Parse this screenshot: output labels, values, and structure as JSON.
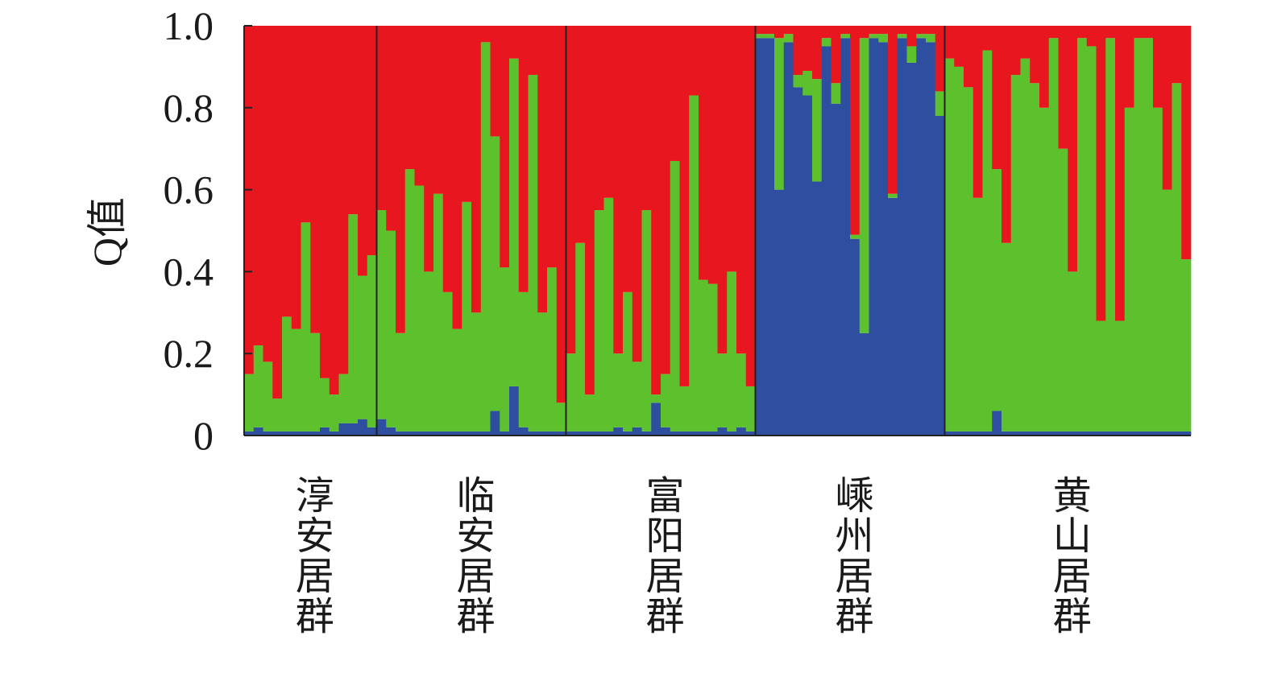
{
  "chart_data": {
    "type": "stacked-bar",
    "ylabel": "Q值",
    "ylim": [
      0,
      1
    ],
    "yticks": [
      0,
      0.2,
      0.4,
      0.6,
      0.8,
      {
        "value": 1,
        "label": "1.0"
      }
    ],
    "groups": [
      {
        "label": "淳安居群",
        "series": [
          {
            "color": "#2e4fa0",
            "values": [
              0.01,
              0.02,
              0.01,
              0.01,
              0.01,
              0.01,
              0.01,
              0.01,
              0.02,
              0.01,
              0.03,
              0.03,
              0.04,
              0.02
            ]
          },
          {
            "color": "#5cc12c",
            "values": [
              0.14,
              0.2,
              0.17,
              0.08,
              0.28,
              0.25,
              0.51,
              0.24,
              0.12,
              0.09,
              0.12,
              0.51,
              0.35,
              0.42
            ]
          },
          {
            "color": "#e8171f",
            "values": [
              0.85,
              0.78,
              0.82,
              0.91,
              0.71,
              0.74,
              0.48,
              0.75,
              0.86,
              0.9,
              0.85,
              0.46,
              0.61,
              0.56
            ]
          }
        ]
      },
      {
        "label": "临安居群",
        "series": [
          {
            "color": "#2e4fa0",
            "values": [
              0.04,
              0.02,
              0.01,
              0.01,
              0.01,
              0.01,
              0.01,
              0.01,
              0.01,
              0.01,
              0.01,
              0.01,
              0.06,
              0.01,
              0.12,
              0.02,
              0.01,
              0.01,
              0.01,
              0.01
            ]
          },
          {
            "color": "#5cc12c",
            "values": [
              0.51,
              0.48,
              0.24,
              0.64,
              0.6,
              0.39,
              0.58,
              0.34,
              0.25,
              0.56,
              0.29,
              0.95,
              0.67,
              0.4,
              0.8,
              0.33,
              0.87,
              0.29,
              0.4,
              0.07
            ]
          },
          {
            "color": "#e8171f",
            "values": [
              0.45,
              0.5,
              0.75,
              0.35,
              0.39,
              0.6,
              0.41,
              0.65,
              0.74,
              0.43,
              0.7,
              0.04,
              0.27,
              0.59,
              0.08,
              0.65,
              0.12,
              0.7,
              0.59,
              0.92
            ]
          }
        ]
      },
      {
        "label": "富阳居群",
        "series": [
          {
            "color": "#2e4fa0",
            "values": [
              0.01,
              0.01,
              0.01,
              0.01,
              0.01,
              0.02,
              0.01,
              0.02,
              0.01,
              0.08,
              0.02,
              0.01,
              0.01,
              0.01,
              0.01,
              0.01,
              0.02,
              0.01,
              0.02,
              0.01
            ]
          },
          {
            "color": "#5cc12c",
            "values": [
              0.19,
              0.46,
              0.09,
              0.54,
              0.57,
              0.18,
              0.34,
              0.16,
              0.54,
              0.02,
              0.13,
              0.66,
              0.11,
              0.82,
              0.37,
              0.36,
              0.18,
              0.39,
              0.18,
              0.11
            ]
          },
          {
            "color": "#e8171f",
            "values": [
              0.8,
              0.53,
              0.9,
              0.45,
              0.42,
              0.8,
              0.65,
              0.82,
              0.45,
              0.9,
              0.85,
              0.33,
              0.88,
              0.17,
              0.62,
              0.63,
              0.8,
              0.6,
              0.8,
              0.88
            ]
          }
        ]
      },
      {
        "label": "嵊州居群",
        "series": [
          {
            "color": "#2e4fa0",
            "values": [
              0.97,
              0.97,
              0.6,
              0.96,
              0.85,
              0.83,
              0.62,
              0.95,
              0.81,
              0.97,
              0.48,
              0.25,
              0.97,
              0.96,
              0.58,
              0.97,
              0.91,
              0.97,
              0.96,
              0.78
            ]
          },
          {
            "color": "#5cc12c",
            "values": [
              0.01,
              0.01,
              0.37,
              0.02,
              0.03,
              0.06,
              0.25,
              0.02,
              0.05,
              0.01,
              0.01,
              0.72,
              0.01,
              0.02,
              0.01,
              0.01,
              0.04,
              0.01,
              0.02,
              0.06
            ]
          },
          {
            "color": "#e8171f",
            "values": [
              0.02,
              0.02,
              0.03,
              0.02,
              0.12,
              0.11,
              0.13,
              0.03,
              0.14,
              0.02,
              0.51,
              0.03,
              0.02,
              0.02,
              0.41,
              0.02,
              0.05,
              0.02,
              0.02,
              0.16
            ]
          }
        ]
      },
      {
        "label": "黄山居群",
        "series": [
          {
            "color": "#2e4fa0",
            "values": [
              0.01,
              0.01,
              0.01,
              0.01,
              0.01,
              0.06,
              0.01,
              0.01,
              0.01,
              0.01,
              0.01,
              0.01,
              0.01,
              0.01,
              0.01,
              0.01,
              0.01,
              0.01,
              0.01,
              0.01,
              0.01,
              0.01,
              0.01,
              0.01,
              0.01,
              0.01
            ]
          },
          {
            "color": "#5cc12c",
            "values": [
              0.91,
              0.89,
              0.84,
              0.57,
              0.93,
              0.59,
              0.46,
              0.87,
              0.91,
              0.85,
              0.79,
              0.96,
              0.69,
              0.39,
              0.96,
              0.94,
              0.27,
              0.96,
              0.27,
              0.79,
              0.96,
              0.96,
              0.79,
              0.59,
              0.85,
              0.42
            ]
          },
          {
            "color": "#e8171f",
            "values": [
              0.08,
              0.1,
              0.15,
              0.42,
              0.06,
              0.35,
              0.53,
              0.12,
              0.08,
              0.14,
              0.2,
              0.03,
              0.3,
              0.6,
              0.03,
              0.05,
              0.72,
              0.03,
              0.72,
              0.2,
              0.03,
              0.03,
              0.2,
              0.4,
              0.14,
              0.57
            ]
          }
        ]
      }
    ]
  }
}
